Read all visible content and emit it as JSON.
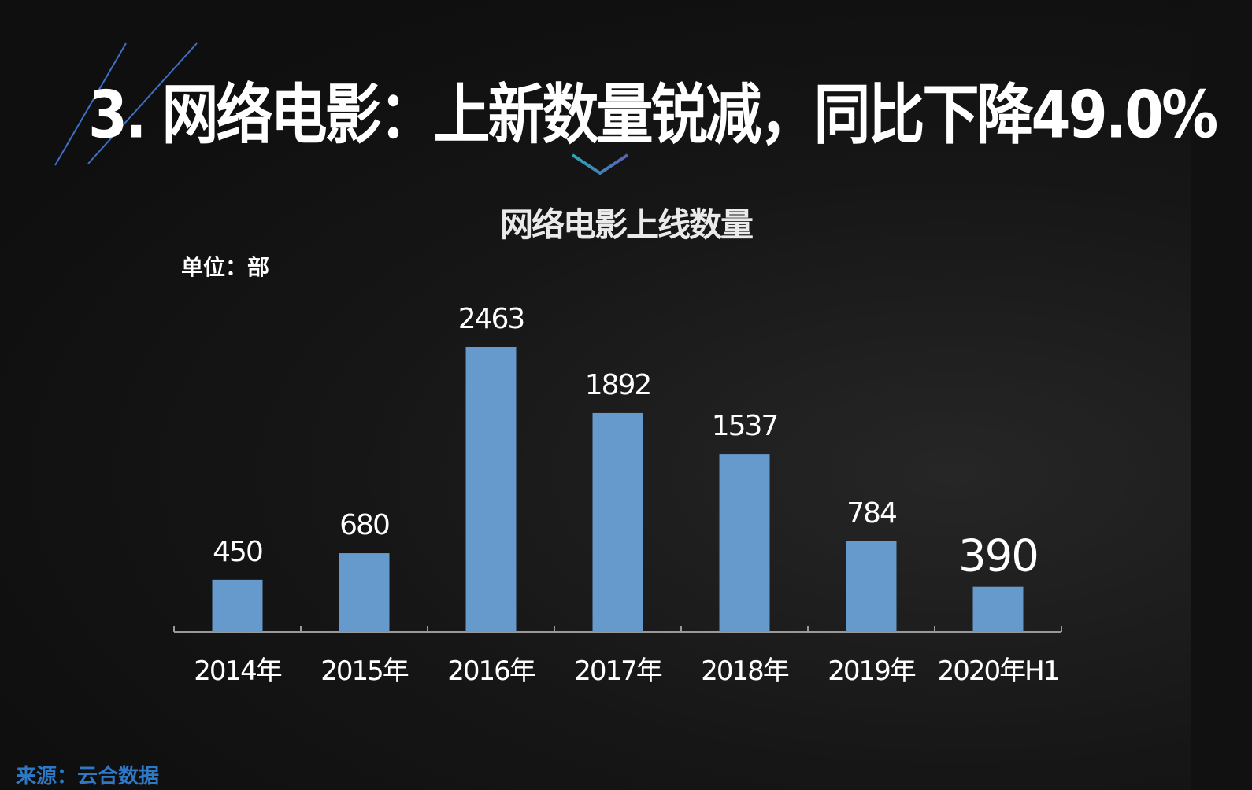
{
  "slide": {
    "title": "3. 网络电影：上新数量锐减，同比下降49.0%",
    "unit": "单位：部",
    "source": "来源：云合数据",
    "accent_line_color": "#3f6fc4",
    "chevron_colors": [
      "#2aa5b5",
      "#5b5fb8"
    ]
  },
  "chart_data": {
    "type": "bar",
    "title": "网络电影上线数量",
    "categories": [
      "2014年",
      "2015年",
      "2016年",
      "2017年",
      "2018年",
      "2019年",
      "2020年H1"
    ],
    "values": [
      450,
      680,
      2463,
      1892,
      1537,
      784,
      390
    ],
    "data_labels": [
      "450",
      "680",
      "2463",
      "1892",
      "1537",
      "784",
      "390"
    ],
    "bar_color": "#6699cc",
    "ylim": [
      0,
      2463
    ],
    "grid": false,
    "legend": "none"
  }
}
